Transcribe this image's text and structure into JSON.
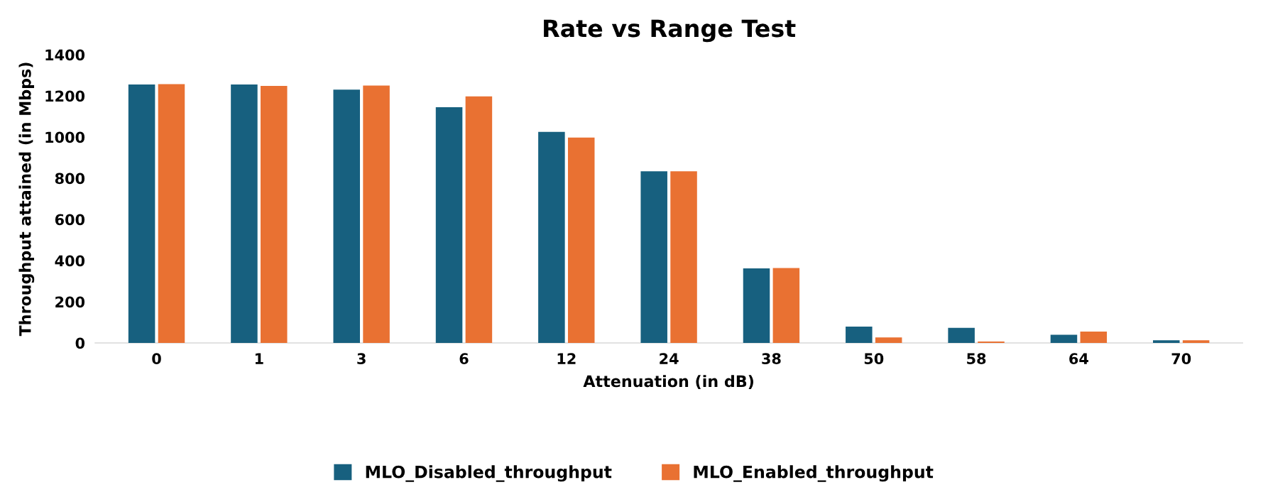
{
  "chart_data": {
    "type": "bar",
    "title": "Rate vs Range Test",
    "xlabel": "Attenuation (in dB)",
    "ylabel": "Throughput attained (in Mbps)",
    "categories": [
      "0",
      "1",
      "3",
      "6",
      "12",
      "24",
      "38",
      "50",
      "58",
      "64",
      "70"
    ],
    "series": [
      {
        "name": "MLO_Disabled_throughput",
        "color": "#17607f",
        "values": [
          1255,
          1255,
          1230,
          1145,
          1025,
          834,
          362,
          79,
          73,
          40,
          13
        ]
      },
      {
        "name": "MLO_Enabled_throughput",
        "color": "#e97132",
        "values": [
          1257,
          1248,
          1250,
          1197,
          997,
          834,
          364,
          27,
          7,
          55,
          13
        ]
      }
    ],
    "ylim": [
      0,
      1400
    ],
    "yticks": [
      0,
      200,
      400,
      600,
      800,
      1000,
      1200,
      1400
    ],
    "grid": false,
    "legend": "bottom"
  }
}
